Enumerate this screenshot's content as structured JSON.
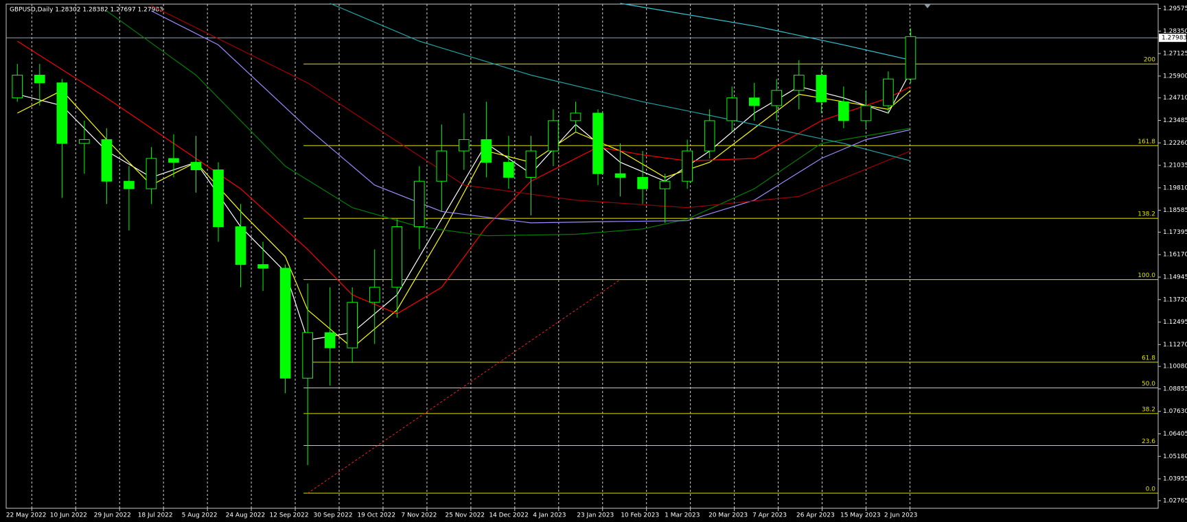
{
  "chart_data": {
    "type": "candlestick",
    "title": "GBPUSD,Daily  1.28302 1.28382 1.27697 1.27983",
    "last_price": 1.27983,
    "candle_color": "#00ff00",
    "background": "#000000",
    "grid": true,
    "ylim": [
      1.0235,
      1.2982
    ],
    "yticks": [
      1.29575,
      {
        "value": 1.2835,
        "label": "1.28350"
      },
      1.27125,
      {
        "value": 1.259,
        "label": "1.25900"
      },
      {
        "value": 1.2471,
        "label": "1.24710"
      },
      1.23485,
      {
        "value": 1.2226,
        "label": "1.22260"
      },
      1.21035,
      {
        "value": 1.1981,
        "label": "1.19810"
      },
      1.18585,
      1.17395,
      {
        "value": 1.1617,
        "label": "1.16170"
      },
      1.14945,
      {
        "value": 1.1372,
        "label": "1.13720"
      },
      1.12495,
      {
        "value": 1.1127,
        "label": "1.11270"
      },
      {
        "value": 1.1008,
        "label": "1.10080"
      },
      1.08855,
      {
        "value": 1.0763,
        "label": "1.07630"
      },
      1.06405,
      {
        "value": 1.0518,
        "label": "1.05180"
      },
      1.03955,
      1.02765
    ],
    "categories": [
      "22 May 2022",
      "10 Jun 2022",
      "29 Jun 2022",
      "18 Jul 2022",
      "5 Aug 2022",
      "24 Aug 2022",
      "12 Sep 2022",
      "30 Sep 2022",
      "19 Oct 2022",
      "7 Nov 2022",
      "25 Nov 2022",
      "14 Dec 2022",
      "4 Jan 2023",
      "23 Jan 2023",
      "10 Feb 2023",
      "1 Mar 2023",
      "20 Mar 2023",
      "7 Apr 2023",
      "26 Apr 2023",
      "15 May 2023",
      "2 Jun 2023"
    ],
    "candles": [
      [
        1.2471,
        1.2656,
        1.245,
        1.2595
      ],
      [
        1.2595,
        1.2656,
        1.2429,
        1.2553
      ],
      [
        1.2553,
        1.2574,
        1.1926,
        1.2223
      ],
      [
        1.2223,
        1.2347,
        1.2058,
        1.2244
      ],
      [
        1.2244,
        1.2306,
        1.1893,
        1.2017
      ],
      [
        1.2017,
        1.2099,
        1.1749,
        1.1976
      ],
      [
        1.1976,
        1.2203,
        1.1893,
        1.2141
      ],
      [
        1.2141,
        1.2273,
        1.2038,
        1.212
      ],
      [
        1.212,
        1.2264,
        1.1955,
        1.2079
      ],
      [
        1.2079,
        1.212,
        1.1687,
        1.1769
      ],
      [
        1.1769,
        1.1893,
        1.1439,
        1.1563
      ],
      [
        1.1563,
        1.1687,
        1.1419,
        1.1543
      ],
      [
        1.1543,
        1.1563,
        1.0862,
        1.0944
      ],
      [
        1.0944,
        1.146,
        1.047,
        1.1192
      ],
      [
        1.1192,
        1.1439,
        1.0903,
        1.1109
      ],
      [
        1.1109,
        1.1439,
        1.1027,
        1.1357
      ],
      [
        1.1357,
        1.1646,
        1.113,
        1.1439
      ],
      [
        1.1439,
        1.1811,
        1.1274,
        1.1769
      ],
      [
        1.1769,
        1.2099,
        1.1646,
        1.2017
      ],
      [
        1.2017,
        1.2326,
        1.1852,
        1.2182
      ],
      [
        1.2182,
        1.2388,
        1.2079,
        1.2244
      ],
      [
        1.2244,
        1.245,
        1.2038,
        1.212
      ],
      [
        1.212,
        1.2264,
        1.1976,
        1.2038
      ],
      [
        1.2038,
        1.2264,
        1.1831,
        1.2182
      ],
      [
        1.2182,
        1.2409,
        1.2099,
        1.2347
      ],
      [
        1.2347,
        1.245,
        1.2285,
        1.2388
      ],
      [
        1.2388,
        1.2409,
        1.1996,
        1.2058
      ],
      [
        1.2058,
        1.2223,
        1.1934,
        1.2038
      ],
      [
        1.2038,
        1.2182,
        1.1893,
        1.1976
      ],
      [
        1.1976,
        1.2058,
        1.179,
        1.2017
      ],
      [
        1.2017,
        1.2244,
        1.1976,
        1.2182
      ],
      [
        1.2182,
        1.2409,
        1.2141,
        1.2347
      ],
      [
        1.2347,
        1.2533,
        1.2285,
        1.2471
      ],
      [
        1.2471,
        1.2553,
        1.2347,
        1.2429
      ],
      [
        1.2429,
        1.2574,
        1.2347,
        1.2512
      ],
      [
        1.2512,
        1.2677,
        1.2409,
        1.2595
      ],
      [
        1.2595,
        1.2636,
        1.2388,
        1.245
      ],
      [
        1.245,
        1.2533,
        1.2306,
        1.2347
      ],
      [
        1.2347,
        1.2512,
        1.2306,
        1.2429
      ],
      [
        1.2429,
        1.2615,
        1.2388,
        1.2574
      ],
      [
        1.2574,
        1.285,
        1.2553,
        1.2805
      ]
    ],
    "series": [
      {
        "color": "#ffffff",
        "x": [
          0,
          2,
          4,
          6,
          8,
          10,
          12,
          13,
          15,
          17,
          19,
          21,
          23,
          25,
          27,
          29,
          31,
          33,
          35,
          37,
          39,
          40
        ],
        "values": [
          1.2491,
          1.2429,
          1.2182,
          1.2038,
          1.212,
          1.1769,
          1.1522,
          1.1151,
          1.1192,
          1.1398,
          1.1811,
          1.2223,
          1.2058,
          1.2326,
          1.212,
          1.2017,
          1.2182,
          1.2388,
          1.2533,
          1.2471,
          1.2388,
          1.2615
        ]
      },
      {
        "color": "#ffff00",
        "x": [
          0,
          2,
          4,
          6,
          8,
          10,
          12,
          13,
          15,
          17,
          19,
          21,
          23,
          25,
          27,
          29,
          31,
          33,
          35,
          37,
          39,
          40
        ],
        "values": [
          1.2388,
          1.2512,
          1.2244,
          1.1996,
          1.212,
          1.1852,
          1.1605,
          1.1316,
          1.1109,
          1.1316,
          1.1728,
          1.2182,
          1.212,
          1.2285,
          1.2182,
          1.2038,
          1.212,
          1.2306,
          1.2491,
          1.245,
          1.2409,
          1.2512
        ]
      },
      {
        "color": "#ff0000",
        "x": [
          0,
          4,
          7,
          10,
          13,
          15,
          17,
          19,
          21,
          23,
          26,
          28,
          30,
          33,
          36,
          39,
          40
        ],
        "values": [
          1.278,
          1.2471,
          1.2223,
          1.1976,
          1.1646,
          1.1398,
          1.1295,
          1.1439,
          1.1769,
          1.2017,
          1.2203,
          1.2161,
          1.2128,
          1.2141,
          1.2347,
          1.2471,
          1.2533
        ]
      },
      {
        "color": "#008000",
        "x": [
          4,
          8,
          12,
          15,
          18,
          21,
          25,
          28,
          30,
          33,
          36,
          40
        ],
        "values": [
          1.2945,
          1.2595,
          1.2099,
          1.1873,
          1.1769,
          1.172,
          1.1728,
          1.1757,
          1.1811,
          1.1976,
          1.2223,
          1.2306
        ]
      },
      {
        "color": "#9b8cff",
        "x": [
          6,
          9,
          13,
          16,
          19,
          23,
          27,
          30,
          33,
          36,
          38,
          40
        ],
        "values": [
          1.2945,
          1.276,
          1.2306,
          1.1996,
          1.1852,
          1.179,
          1.1798,
          1.1802,
          1.1914,
          1.2141,
          1.2244,
          1.2298
        ]
      },
      {
        "color": "#a00000",
        "x": [
          6,
          13,
          20,
          25,
          30,
          35,
          40
        ],
        "values": [
          1.2974,
          1.2553,
          1.1996,
          1.1914,
          1.1873,
          1.1934,
          1.2182
        ]
      },
      {
        "color": "#1fa3a3",
        "x": [
          14,
          18,
          23,
          28,
          33,
          37,
          40
        ],
        "values": [
          1.2986,
          1.278,
          1.2595,
          1.245,
          1.2326,
          1.2223,
          1.2128
        ]
      },
      {
        "color": "#2fc8d8",
        "x": [
          27,
          33,
          37,
          40
        ],
        "values": [
          1.2986,
          1.2863,
          1.276,
          1.2677
        ]
      }
    ],
    "trendline": {
      "color": "#ff2020",
      "x": [
        13,
        27
      ],
      "values": [
        1.0317,
        1.1481
      ]
    },
    "fibo": {
      "color": "#e0e000",
      "start": 13,
      "levels": [
        {
          "label": "0.0",
          "value": 1.0317
        },
        {
          "label": "23.6",
          "value": 1.0577
        },
        {
          "label": "38.2",
          "value": 1.0751
        },
        {
          "label": "50.0",
          "value": 1.0891
        },
        {
          "label": "61.8",
          "value": 1.1031
        },
        {
          "label": "100.0",
          "value": 1.1481
        },
        {
          "label": "138.2",
          "value": 1.1815
        },
        {
          "label": "161.8",
          "value": 1.2211
        },
        {
          "label": "200",
          "value": 1.2656
        }
      ]
    }
  }
}
